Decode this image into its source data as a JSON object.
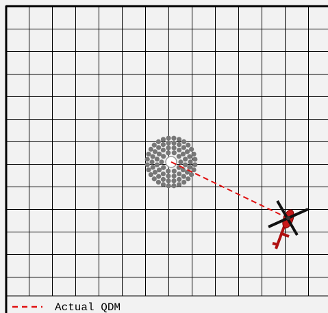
{
  "legend": {
    "label": "Actual QDM"
  }
}
